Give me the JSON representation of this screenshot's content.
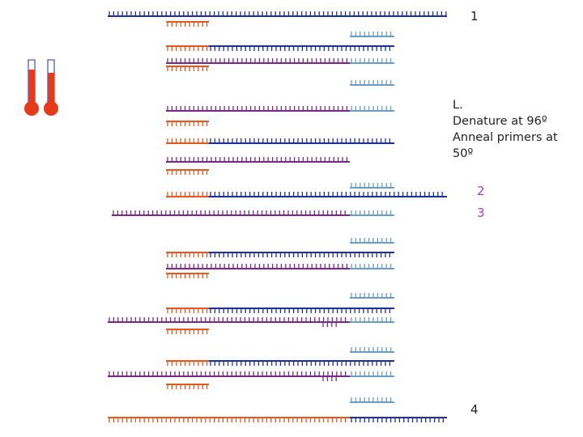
{
  "colors": {
    "dark_blue": "#1f2f9a",
    "orange": "#e2581f",
    "light_blue": "#6a9cc4",
    "purple": "#7a2a86",
    "template": "#6a9cc4",
    "thermo_red": "#e63b1b",
    "thermo_outline": "#1f2f9a",
    "label_magenta": "#a53dc4",
    "text": "#222222"
  },
  "icons": [
    "thermometer-icon",
    "thermometer-icon"
  ],
  "labels": {
    "cycle_1": "1",
    "cycle_2": "2",
    "cycle_3": "3",
    "cycle_4": "4",
    "step_lines": [
      "L.",
      "Denature at 96º",
      "Anneal primers at",
      "50º"
    ]
  },
  "strands": [
    {
      "segments": [
        {
          "color": "dark_blue"
        }
      ],
      "orientation": "up"
    },
    {
      "segments": [
        {
          "color": "orange"
        }
      ],
      "orientation": "down"
    },
    {
      "segments": [
        {
          "color": "light_blue"
        }
      ],
      "orientation": "up"
    },
    {
      "segments": [
        {
          "color": "orange"
        },
        {
          "color": "dark_blue"
        }
      ],
      "orientation": "down"
    },
    {
      "segments": [
        {
          "color": "purple"
        },
        {
          "color": "light_blue"
        }
      ],
      "orientation": "up"
    },
    {
      "segments": [
        {
          "color": "orange"
        }
      ],
      "orientation": "down"
    },
    {
      "segments": [
        {
          "color": "light_blue"
        }
      ],
      "orientation": "up"
    },
    {
      "segments": [
        {
          "color": "purple"
        },
        {
          "color": "light_blue"
        }
      ],
      "orientation": "up"
    },
    {
      "segments": [
        {
          "color": "orange"
        }
      ],
      "orientation": "down"
    },
    {
      "segments": [
        {
          "color": "orange"
        },
        {
          "color": "dark_blue"
        }
      ],
      "orientation": "up"
    },
    {
      "segments": [
        {
          "color": "purple"
        }
      ],
      "orientation": "up"
    },
    {
      "segments": [
        {
          "color": "orange"
        }
      ],
      "orientation": "down"
    },
    {
      "segments": [
        {
          "color": "light_blue"
        }
      ],
      "orientation": "up"
    },
    {
      "segments": [
        {
          "color": "orange"
        },
        {
          "color": "dark_blue"
        }
      ],
      "orientation": "up"
    },
    {
      "segments": [
        {
          "color": "purple"
        },
        {
          "color": "light_blue"
        }
      ],
      "orientation": "up"
    },
    {
      "segments": [
        {
          "color": "light_blue"
        }
      ],
      "orientation": "up"
    },
    {
      "segments": [
        {
          "color": "orange"
        },
        {
          "color": "dark_blue"
        }
      ],
      "orientation": "down"
    },
    {
      "segments": [
        {
          "color": "orange"
        }
      ],
      "orientation": "down"
    },
    {
      "segments": [
        {
          "color": "purple"
        },
        {
          "color": "light_blue"
        }
      ],
      "orientation": "up"
    },
    {
      "segments": [
        {
          "color": "light_blue"
        }
      ],
      "orientation": "up"
    },
    {
      "segments": [
        {
          "color": "orange"
        },
        {
          "color": "dark_blue"
        }
      ],
      "orientation": "down"
    },
    {
      "segments": [
        {
          "color": "purple"
        },
        {
          "color": "light_blue"
        }
      ],
      "orientation": "up"
    },
    {
      "segments": [
        {
          "color": "purple"
        }
      ],
      "orientation": "down"
    },
    {
      "segments": [
        {
          "color": "orange"
        }
      ],
      "orientation": "down"
    },
    {
      "segments": [
        {
          "color": "light_blue"
        }
      ],
      "orientation": "up"
    },
    {
      "segments": [
        {
          "color": "orange"
        },
        {
          "color": "dark_blue"
        }
      ],
      "orientation": "down"
    },
    {
      "segments": [
        {
          "color": "purple"
        },
        {
          "color": "light_blue"
        }
      ],
      "orientation": "up"
    },
    {
      "segments": [
        {
          "color": "purple"
        }
      ],
      "orientation": "down"
    },
    {
      "segments": [
        {
          "color": "orange"
        }
      ],
      "orientation": "down"
    },
    {
      "segments": [
        {
          "color": "light_blue"
        }
      ],
      "orientation": "up"
    },
    {
      "segments": [
        {
          "color": "orange"
        },
        {
          "color": "dark_blue"
        }
      ],
      "orientation": "down"
    },
    {
      "segments": [
        {
          "color": "purple"
        },
        {
          "color": "light_blue"
        }
      ],
      "orientation": "up"
    },
    {
      "segments": [
        {
          "color": "purple"
        }
      ],
      "orientation": "down"
    },
    {
      "segments": [
        {
          "color": "orange"
        }
      ],
      "orientation": "down"
    },
    {
      "segments": [
        {
          "color": "light_blue"
        }
      ],
      "orientation": "up"
    },
    {
      "segments": [
        {
          "color": "orange"
        },
        {
          "color": "light_blue"
        }
      ],
      "orientation": "up"
    }
  ]
}
